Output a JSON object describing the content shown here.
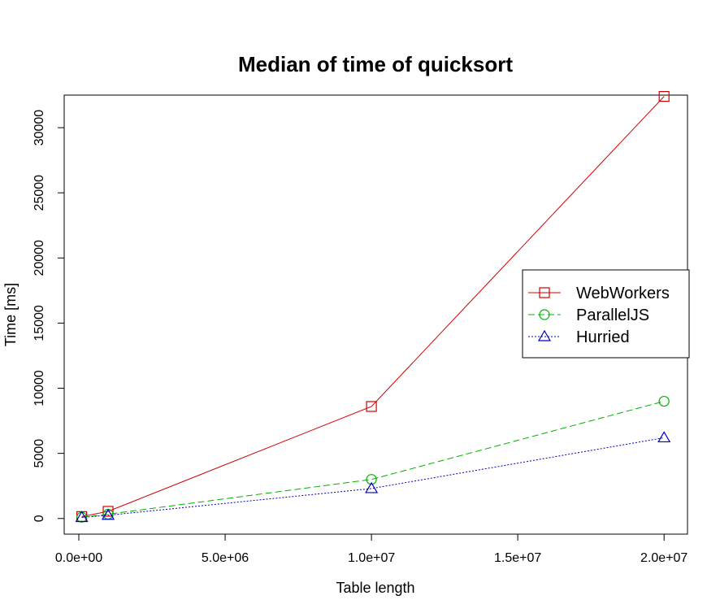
{
  "chart_data": {
    "type": "line",
    "title": "Median of time of quicksort",
    "xlabel": "Table length",
    "ylabel": "Time [ms]",
    "xlim": [
      -500000,
      20800000
    ],
    "ylim": [
      -1200,
      32500
    ],
    "x_ticks": [
      0,
      5000000,
      10000000,
      15000000,
      20000000
    ],
    "x_tick_labels": [
      "0.0e+00",
      "5.0e+06",
      "1.0e+07",
      "1.5e+07",
      "2.0e+07"
    ],
    "y_ticks": [
      0,
      5000,
      10000,
      15000,
      20000,
      25000,
      30000
    ],
    "y_tick_labels": [
      "0",
      "5000",
      "10000",
      "15000",
      "20000",
      "25000",
      "30000"
    ],
    "grid": false,
    "legend_position": "right",
    "series": [
      {
        "name": "WebWorkers",
        "color": "#d00000",
        "line_style": "solid",
        "marker": "square",
        "x": [
          100000,
          1000000,
          10000000,
          20000000
        ],
        "y": [
          150,
          550,
          8600,
          32400
        ]
      },
      {
        "name": "ParallelJS",
        "color": "#00b000",
        "line_style": "dashed",
        "marker": "circle",
        "x": [
          100000,
          1000000,
          10000000,
          20000000
        ],
        "y": [
          100,
          330,
          3000,
          9000
        ]
      },
      {
        "name": "Hurried",
        "color": "#0000c0",
        "line_style": "dotted",
        "marker": "triangle",
        "x": [
          100000,
          1000000,
          10000000,
          20000000
        ],
        "y": [
          80,
          250,
          2300,
          6200
        ]
      }
    ]
  }
}
